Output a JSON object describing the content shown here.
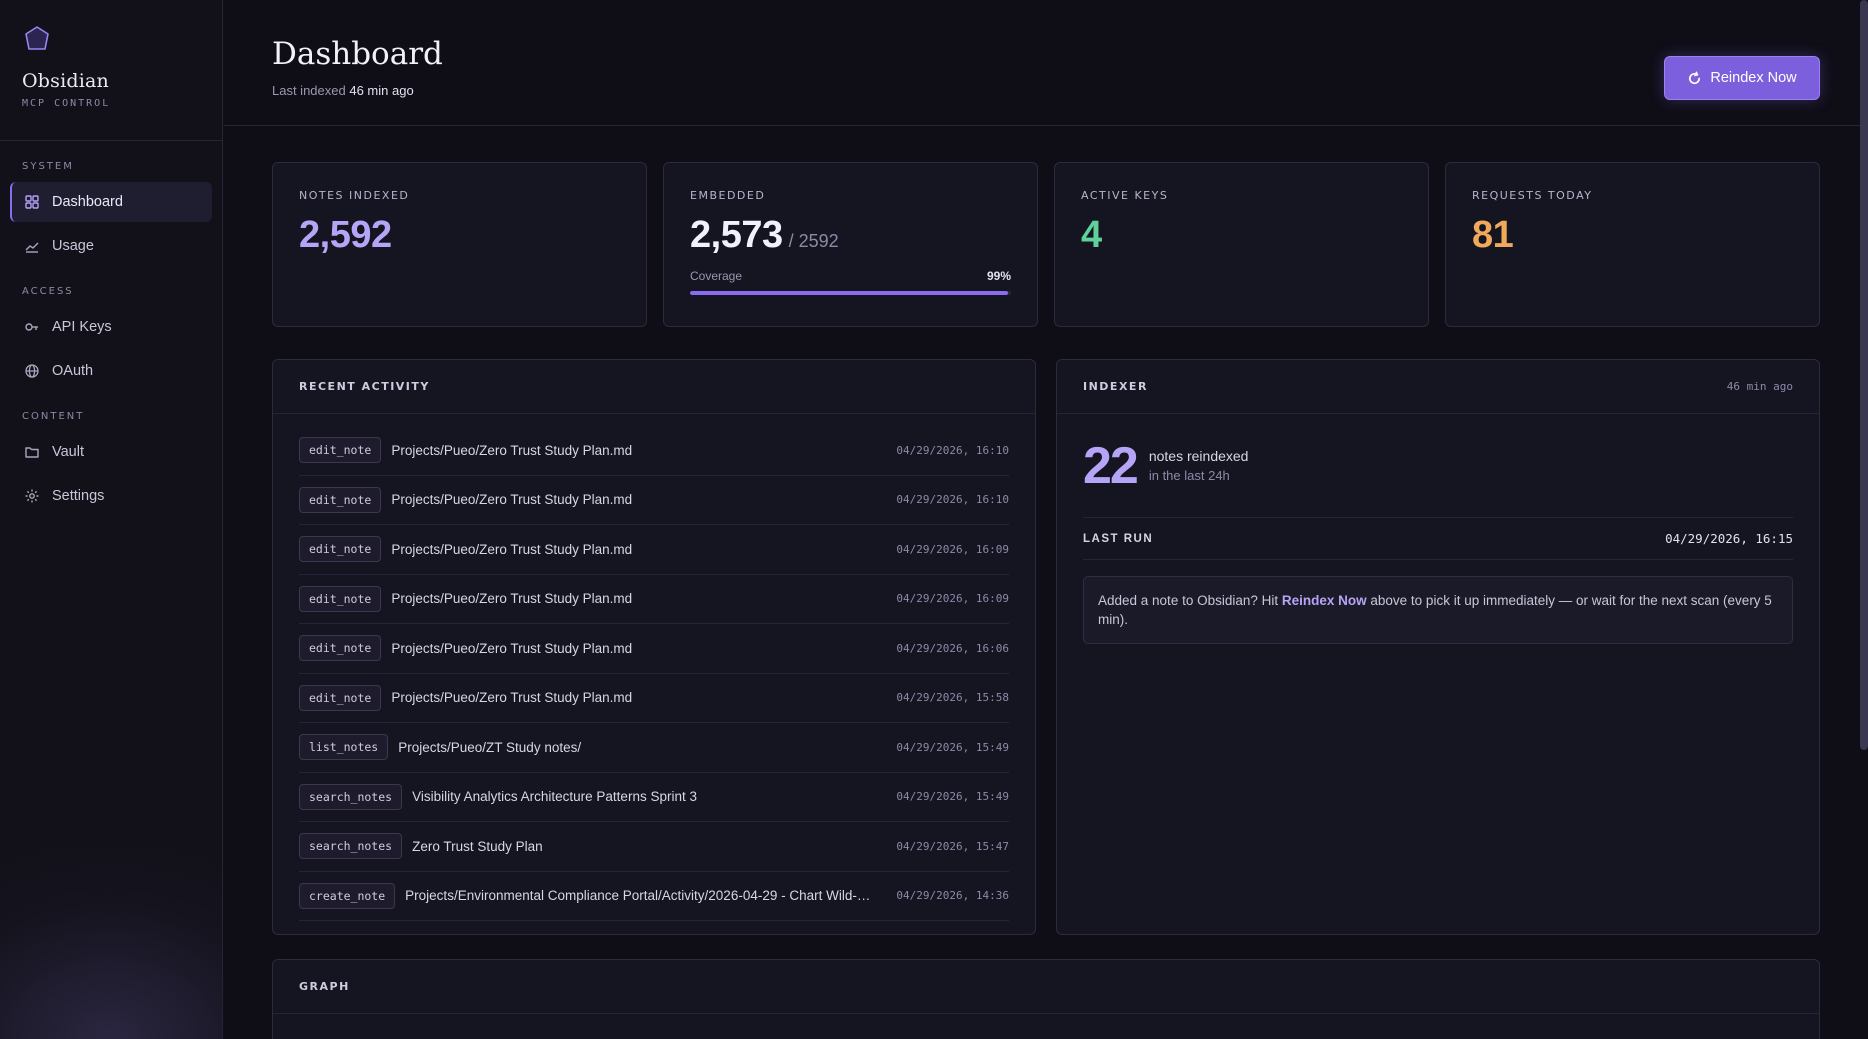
{
  "brand": {
    "name": "Obsidian",
    "subtitle": "MCP CONTROL"
  },
  "nav": {
    "sections": [
      {
        "title": "SYSTEM",
        "items": [
          {
            "label": "Dashboard",
            "icon": "grid-icon",
            "active": true
          },
          {
            "label": "Usage",
            "icon": "chart-line-icon"
          }
        ]
      },
      {
        "title": "ACCESS",
        "items": [
          {
            "label": "API Keys",
            "icon": "key-icon"
          },
          {
            "label": "OAuth",
            "icon": "globe-icon"
          }
        ]
      },
      {
        "title": "CONTENT",
        "items": [
          {
            "label": "Vault",
            "icon": "folder-icon"
          },
          {
            "label": "Settings",
            "icon": "gear-icon"
          }
        ]
      }
    ]
  },
  "header": {
    "title": "Dashboard",
    "last_indexed_prefix": "Last indexed",
    "last_indexed_value": "46 min ago",
    "reindex_label": "Reindex Now"
  },
  "stats": {
    "notes_indexed": {
      "label": "NOTES INDEXED",
      "value": "2,592",
      "color": "#b6a4f6"
    },
    "embedded": {
      "label": "EMBEDDED",
      "value": "2,573",
      "total": "/ 2592",
      "coverage_label": "Coverage",
      "coverage_value": "99%",
      "coverage_fraction": 0.99,
      "color": "#f2f0fa"
    },
    "active_keys": {
      "label": "ACTIVE KEYS",
      "value": "4",
      "color": "#5ed29a"
    },
    "requests_today": {
      "label": "REQUESTS TODAY",
      "value": "81",
      "color": "#f0a95a"
    }
  },
  "activity": {
    "title": "RECENT ACTIVITY",
    "rows": [
      {
        "tool": "edit_note",
        "path": "Projects/Pueo/Zero Trust Study Plan.md",
        "time": "04/29/2026, 16:10"
      },
      {
        "tool": "edit_note",
        "path": "Projects/Pueo/Zero Trust Study Plan.md",
        "time": "04/29/2026, 16:10"
      },
      {
        "tool": "edit_note",
        "path": "Projects/Pueo/Zero Trust Study Plan.md",
        "time": "04/29/2026, 16:09"
      },
      {
        "tool": "edit_note",
        "path": "Projects/Pueo/Zero Trust Study Plan.md",
        "time": "04/29/2026, 16:09"
      },
      {
        "tool": "edit_note",
        "path": "Projects/Pueo/Zero Trust Study Plan.md",
        "time": "04/29/2026, 16:06"
      },
      {
        "tool": "edit_note",
        "path": "Projects/Pueo/Zero Trust Study Plan.md",
        "time": "04/29/2026, 15:58"
      },
      {
        "tool": "list_notes",
        "path": "Projects/Pueo/ZT Study notes/",
        "time": "04/29/2026, 15:49"
      },
      {
        "tool": "search_notes",
        "path": "Visibility Analytics Architecture Patterns Sprint 3",
        "time": "04/29/2026, 15:49"
      },
      {
        "tool": "search_notes",
        "path": "Zero Trust Study Plan",
        "time": "04/29/2026, 15:47"
      },
      {
        "tool": "create_note",
        "path": "Projects/Environmental Compliance Portal/Activity/2026-04-29 - Chart Wild-…",
        "time": "04/29/2026, 14:36"
      }
    ]
  },
  "indexer": {
    "title": "INDEXER",
    "meta": "46 min ago",
    "reindexed_count": "22",
    "reindexed_label": "notes reindexed",
    "reindexed_sub": "in the last 24h",
    "last_run_label": "LAST RUN",
    "last_run_value": "04/29/2026, 16:15",
    "hint_before": "Added a note to Obsidian? Hit ",
    "hint_strong": "Reindex Now",
    "hint_after": " above to pick it up immediately — or wait for the next scan (every 5 min)."
  },
  "graph": {
    "title": "GRAPH"
  }
}
